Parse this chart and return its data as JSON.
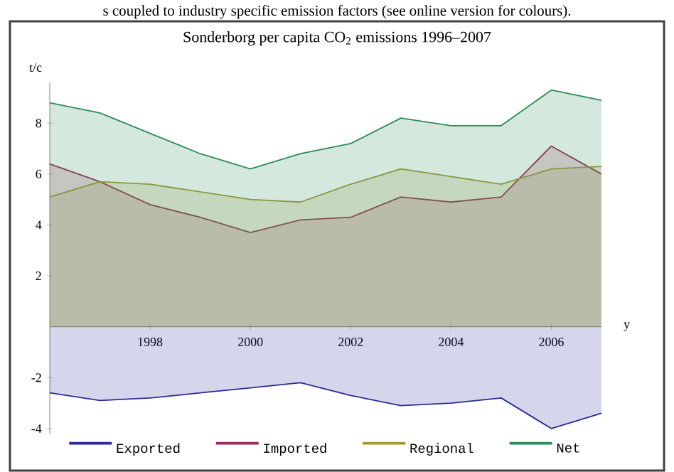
{
  "chart_data": {
    "type": "area",
    "title": "Sonderborg per capita CO$_{2}$ emissions 1996–2007",
    "xlabel": "y",
    "ylabel": "t/c",
    "annotations": [
      "s coupled to industry specific emission factors (see online version for colours)."
    ],
    "x": [
      1996,
      1997,
      1998,
      1999,
      2000,
      2001,
      2002,
      2003,
      2004,
      2005,
      2006,
      2007
    ],
    "xlim": [
      1996,
      2007
    ],
    "ylim": [
      -4.2,
      9.6
    ],
    "xticks": [
      1998,
      2000,
      2002,
      2004,
      2006
    ],
    "yticks": [
      -4,
      -2,
      2,
      4,
      6,
      8
    ],
    "legend": "bottom",
    "series": [
      {
        "name": "Exported",
        "color": "#2b2b9b",
        "values": [
          -2.6,
          -2.9,
          -2.8,
          -2.6,
          -2.4,
          -2.2,
          -2.7,
          -3.1,
          -3.0,
          -2.8,
          -4.0,
          -3.4
        ]
      },
      {
        "name": "Imported",
        "color": "#9b2b5b",
        "values": [
          6.4,
          5.7,
          4.8,
          4.3,
          3.7,
          4.2,
          4.3,
          5.1,
          4.9,
          5.1,
          7.1,
          6.0
        ]
      },
      {
        "name": "Regional",
        "color": "#a09a3a",
        "values": [
          5.1,
          5.7,
          5.6,
          5.3,
          5.0,
          4.9,
          5.6,
          6.2,
          5.9,
          5.6,
          6.2,
          6.3
        ]
      },
      {
        "name": "Net",
        "color": "#2e8b57",
        "values": [
          8.8,
          8.4,
          7.6,
          6.8,
          6.2,
          6.8,
          7.2,
          8.2,
          7.9,
          7.9,
          9.3,
          8.9
        ]
      }
    ]
  }
}
